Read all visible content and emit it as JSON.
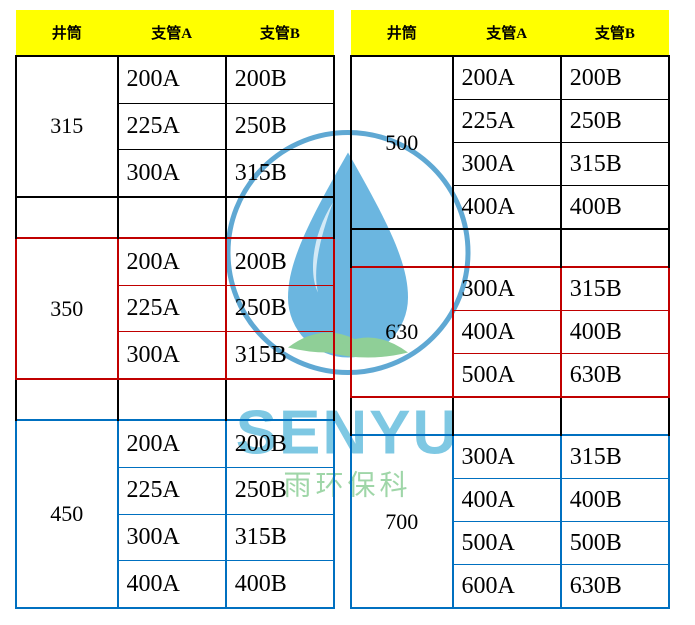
{
  "colors": {
    "header_bg": "#ffff00",
    "header_text": "#000000",
    "border_black": "#000000",
    "border_red": "#c00000",
    "border_blue": "#0070c0",
    "watermark_text": "#7ec8e3",
    "watermark_sub": "#9fd6a8",
    "drop_fill": "#6bb6e0",
    "circle_stroke": "#5fa8d3",
    "leaf_fill": "#8fcf97"
  },
  "headers": [
    "井筒",
    "支管A",
    "支管B"
  ],
  "watermark": {
    "main": "SENYU",
    "sub": "雨环保科"
  },
  "left": [
    {
      "label": "315",
      "border": "black",
      "rows": [
        [
          "200A",
          "200B"
        ],
        [
          "225A",
          "250B"
        ],
        [
          "300A",
          "315B"
        ]
      ]
    },
    {
      "label": "350",
      "border": "red",
      "rows": [
        [
          "200A",
          "200B"
        ],
        [
          "225A",
          "250B"
        ],
        [
          "300A",
          "315B"
        ]
      ]
    },
    {
      "label": "450",
      "border": "blue",
      "rows": [
        [
          "200A",
          "200B"
        ],
        [
          "225A",
          "250B"
        ],
        [
          "300A",
          "315B"
        ],
        [
          "400A",
          "400B"
        ]
      ]
    }
  ],
  "right": [
    {
      "label": "500",
      "border": "black",
      "rows": [
        [
          "200A",
          "200B"
        ],
        [
          "225A",
          "250B"
        ],
        [
          "300A",
          "315B"
        ],
        [
          "400A",
          "400B"
        ]
      ]
    },
    {
      "label": "630",
      "border": "red",
      "rows": [
        [
          "300A",
          "315B"
        ],
        [
          "400A",
          "400B"
        ],
        [
          "500A",
          "630B"
        ]
      ]
    },
    {
      "label": "700",
      "border": "blue",
      "rows": [
        [
          "300A",
          "315B"
        ],
        [
          "400A",
          "400B"
        ],
        [
          "500A",
          "500B"
        ],
        [
          "600A",
          "630B"
        ]
      ]
    }
  ]
}
